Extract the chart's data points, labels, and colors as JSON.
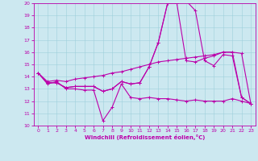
{
  "xlabel": "Windchill (Refroidissement éolien,°C)",
  "xlim": [
    -0.5,
    23.5
  ],
  "ylim": [
    10,
    20
  ],
  "xticks": [
    0,
    1,
    2,
    3,
    4,
    5,
    6,
    7,
    8,
    9,
    10,
    11,
    12,
    13,
    14,
    15,
    16,
    17,
    18,
    19,
    20,
    21,
    22,
    23
  ],
  "yticks": [
    10,
    11,
    12,
    13,
    14,
    15,
    16,
    17,
    18,
    19,
    20
  ],
  "bg_color": "#cce8f0",
  "line_color": "#bb00aa",
  "line1_x": [
    0,
    1,
    2,
    3,
    4,
    5,
    6,
    7,
    8,
    9,
    10,
    11,
    12,
    13,
    14,
    15,
    16,
    17,
    18,
    19,
    20,
    21,
    22,
    23
  ],
  "line1_y": [
    14.3,
    13.4,
    13.6,
    13.0,
    13.0,
    12.9,
    12.9,
    10.4,
    11.5,
    13.4,
    12.3,
    12.2,
    12.3,
    12.2,
    12.2,
    12.1,
    12.0,
    12.1,
    12.0,
    12.0,
    12.0,
    12.2,
    12.0,
    11.8
  ],
  "line2_x": [
    0,
    1,
    2,
    3,
    4,
    5,
    6,
    7,
    8,
    9,
    10,
    11,
    12,
    13,
    14,
    15,
    16,
    17,
    18,
    19,
    20,
    21,
    22,
    23
  ],
  "line2_y": [
    14.3,
    13.6,
    13.7,
    13.6,
    13.8,
    13.9,
    14.0,
    14.1,
    14.3,
    14.4,
    14.6,
    14.8,
    15.0,
    15.2,
    15.3,
    15.4,
    15.5,
    15.6,
    15.7,
    15.8,
    16.0,
    16.0,
    15.9,
    11.8
  ],
  "line3_x": [
    0,
    1,
    2,
    3,
    4,
    5,
    6,
    7,
    8,
    9,
    10,
    11,
    12,
    13,
    14,
    15,
    16,
    17,
    18,
    19,
    20,
    21,
    22,
    23
  ],
  "line3_y": [
    14.3,
    13.5,
    13.5,
    13.1,
    13.2,
    13.2,
    13.2,
    12.8,
    13.0,
    13.6,
    13.4,
    13.5,
    14.8,
    16.8,
    20.0,
    20.0,
    20.2,
    19.4,
    15.3,
    14.9,
    15.8,
    15.7,
    12.3,
    11.8
  ],
  "line4_x": [
    0,
    1,
    2,
    3,
    4,
    5,
    6,
    7,
    8,
    9,
    10,
    11,
    12,
    13,
    14,
    15,
    16,
    17,
    18,
    19,
    20,
    21,
    22,
    23
  ],
  "line4_y": [
    14.3,
    13.5,
    13.5,
    13.1,
    13.2,
    13.2,
    13.2,
    12.8,
    13.0,
    13.6,
    13.4,
    13.5,
    14.8,
    16.8,
    20.0,
    20.0,
    15.3,
    15.2,
    15.5,
    15.7,
    16.0,
    16.0,
    12.3,
    11.8
  ]
}
